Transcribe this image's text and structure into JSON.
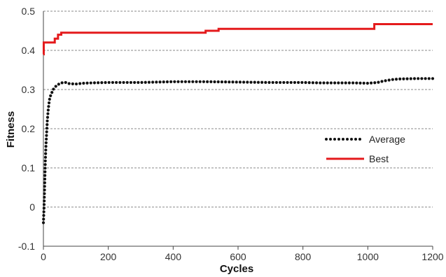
{
  "chart_data": {
    "type": "line",
    "xlabel": "Cycles",
    "ylabel": "Fitness",
    "xlim": [
      0,
      1200
    ],
    "ylim": [
      -0.1,
      0.5
    ],
    "x_ticks": [
      "0",
      "200",
      "400",
      "600",
      "800",
      "1000",
      "1200"
    ],
    "y_ticks": [
      "-0.1",
      "0",
      "0.1",
      "0.2",
      "0.3",
      "0.4",
      "0.5"
    ],
    "grid": "horizontal dashed",
    "legend_position": "center-right",
    "series": [
      {
        "name": "Average",
        "style": "dotted",
        "color": "#111111",
        "x": [
          0,
          1,
          2,
          3,
          4,
          5,
          6,
          8,
          10,
          12,
          15,
          18,
          20,
          25,
          30,
          35,
          40,
          50,
          60,
          70,
          80,
          100,
          120,
          150,
          200,
          250,
          300,
          350,
          400,
          450,
          500,
          600,
          700,
          800,
          850,
          900,
          950,
          1000,
          1030,
          1050,
          1080,
          1100,
          1150,
          1200
        ],
        "y": [
          -0.04,
          -0.02,
          0.0,
          0.03,
          0.06,
          0.09,
          0.12,
          0.16,
          0.19,
          0.22,
          0.25,
          0.27,
          0.28,
          0.29,
          0.3,
          0.305,
          0.31,
          0.315,
          0.318,
          0.318,
          0.315,
          0.314,
          0.316,
          0.317,
          0.318,
          0.318,
          0.318,
          0.319,
          0.32,
          0.32,
          0.32,
          0.319,
          0.318,
          0.318,
          0.317,
          0.317,
          0.317,
          0.316,
          0.318,
          0.322,
          0.326,
          0.327,
          0.328,
          0.328
        ]
      },
      {
        "name": "Best",
        "style": "solid-step",
        "color": "#e41a1c",
        "x": [
          0,
          1,
          1,
          35,
          35,
          45,
          45,
          55,
          55,
          500,
          500,
          540,
          540,
          1020,
          1020,
          1200
        ],
        "y": [
          0.39,
          0.39,
          0.42,
          0.42,
          0.43,
          0.43,
          0.44,
          0.44,
          0.445,
          0.445,
          0.45,
          0.45,
          0.455,
          0.455,
          0.467,
          0.467
        ]
      }
    ],
    "legend": [
      {
        "label": "Average",
        "style": "dotted",
        "color": "#111111"
      },
      {
        "label": "Best",
        "style": "solid",
        "color": "#e41a1c"
      }
    ]
  }
}
